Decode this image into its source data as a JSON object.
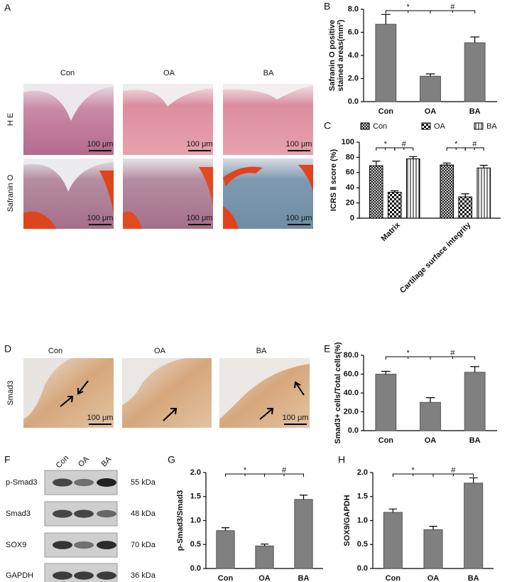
{
  "histology_a": {
    "panel": "A",
    "columns": [
      "Con",
      "OA",
      "BA"
    ],
    "rows": [
      "H E",
      "Safranin O"
    ],
    "scale_bar": "100 μm"
  },
  "histology_d": {
    "panel": "D",
    "columns": [
      "Con",
      "OA",
      "BA"
    ],
    "row": "Smad3",
    "scale_bar": "100 μm"
  },
  "western_f": {
    "panel": "F",
    "lanes": [
      "Con",
      "OA",
      "BA"
    ],
    "bands": [
      {
        "name": "p-Smad3",
        "size": "55 kDa"
      },
      {
        "name": "Smad3",
        "size": "48 kDa"
      },
      {
        "name": "SOX9",
        "size": "70 kDa"
      },
      {
        "name": "GAPDH",
        "size": "36 kDa"
      }
    ]
  },
  "chart_data": [
    {
      "panel": "B",
      "type": "bar",
      "ylabel": [
        "Safranin O positive",
        "stained areas(mm²)"
      ],
      "categories": [
        "Con",
        "OA",
        "BA"
      ],
      "values": [
        6.7,
        2.2,
        5.1
      ],
      "errors": [
        0.85,
        0.2,
        0.5
      ],
      "color": "#808080",
      "ylim": [
        0,
        8
      ],
      "yticks": [
        {
          "value": 0,
          "label": "0.0"
        },
        {
          "value": 2,
          "label": "2.0"
        },
        {
          "value": 4,
          "label": "4.0"
        },
        {
          "value": 6,
          "label": "6.0"
        },
        {
          "value": 8,
          "label": "8.0"
        }
      ],
      "annotations": [
        "*",
        "#"
      ]
    },
    {
      "panel": "C",
      "type": "grouped_bar",
      "ylabel": "ICRS Ⅱ score (%)",
      "categories": [
        "Matrix",
        "Cartilage surface integrity"
      ],
      "legend": "top",
      "series": [
        {
          "name": "Con",
          "pattern": "crosshatch",
          "values": [
            69,
            70
          ],
          "errors": [
            6,
            2.5
          ]
        },
        {
          "name": "OA",
          "pattern": "checker",
          "values": [
            34,
            28
          ],
          "errors": [
            2,
            4
          ]
        },
        {
          "name": "BA",
          "pattern": "vlines",
          "values": [
            78,
            66
          ],
          "errors": [
            3,
            3.5
          ]
        }
      ],
      "ylim": [
        0,
        100
      ],
      "yticks": [
        0,
        20,
        40,
        60,
        80,
        100
      ],
      "annotations": [
        "*",
        "#"
      ]
    },
    {
      "panel": "E",
      "type": "bar",
      "ylabel": "Smad3+ cells/Total cells(%)",
      "categories": [
        "Con",
        "OA",
        "BA"
      ],
      "values": [
        60,
        30,
        62
      ],
      "errors": [
        3,
        5,
        6
      ],
      "color": "#808080",
      "ylim": [
        0,
        80
      ],
      "yticks": [
        {
          "value": 0,
          "label": "0.0"
        },
        {
          "value": 20,
          "label": "20.0"
        },
        {
          "value": 40,
          "label": "40.0"
        },
        {
          "value": 60,
          "label": "60.0"
        },
        {
          "value": 80,
          "label": "80.0"
        }
      ],
      "annotations": [
        "*",
        "#"
      ]
    },
    {
      "panel": "G",
      "type": "bar",
      "ylabel": "p-Smad3/Smad3",
      "categories": [
        "Con",
        "OA",
        "BA"
      ],
      "values": [
        0.79,
        0.47,
        1.44
      ],
      "errors": [
        0.06,
        0.04,
        0.09
      ],
      "color": "#808080",
      "ylim": [
        0,
        2
      ],
      "yticks": [
        {
          "value": 0,
          "label": "0.0"
        },
        0.5,
        {
          "value": 1,
          "label": "1.0"
        },
        1.5,
        {
          "value": 2,
          "label": "2.0"
        }
      ],
      "annotations": [
        "*",
        "#"
      ]
    },
    {
      "panel": "H",
      "type": "bar",
      "ylabel": "SOX9/GAPDH",
      "categories": [
        "Con",
        "OA",
        "BA"
      ],
      "values": [
        1.17,
        0.81,
        1.78
      ],
      "errors": [
        0.07,
        0.07,
        0.11
      ],
      "color": "#808080",
      "ylim": [
        0,
        2
      ],
      "yticks": [
        {
          "value": 0,
          "label": "0.0"
        },
        0.5,
        {
          "value": 1,
          "label": "1.0"
        },
        1.5,
        {
          "value": 2,
          "label": "2.0"
        }
      ],
      "annotations": [
        "*",
        "#"
      ]
    }
  ]
}
